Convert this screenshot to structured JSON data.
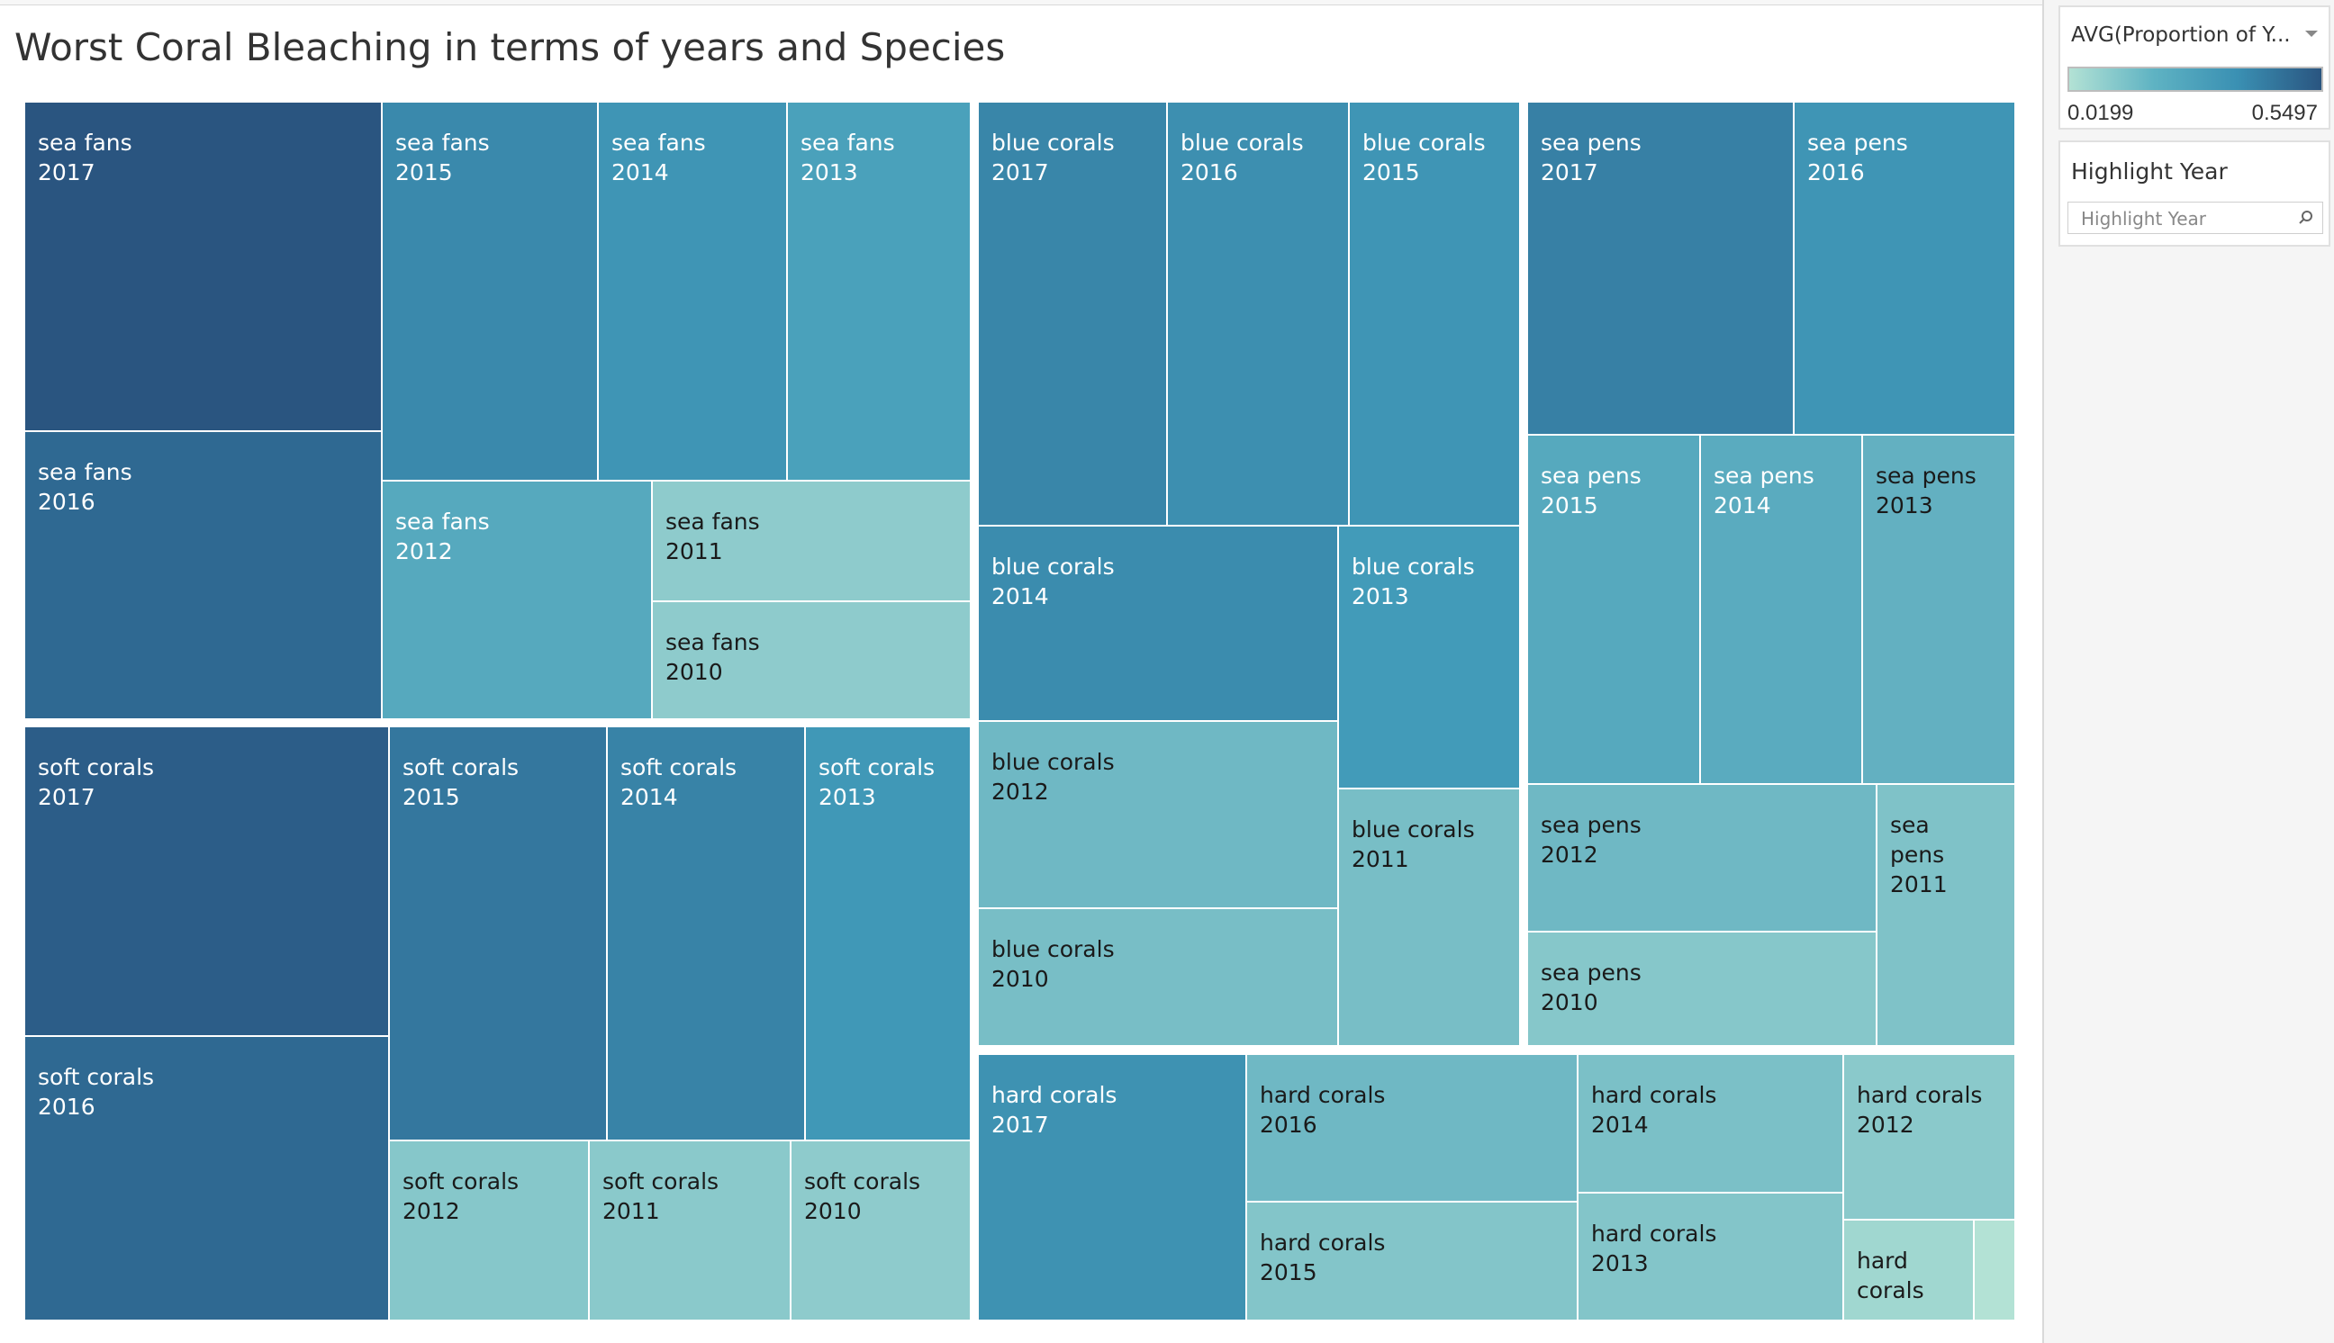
{
  "title": "Worst Coral Bleaching in terms of years and Species",
  "legend": {
    "title": "AVG(Proportion of Y...",
    "min_label": "0.0199",
    "max_label": "0.5497",
    "color_low": "#b3e2d5",
    "color_high": "#2a5580"
  },
  "highlight": {
    "title": "Highlight Year",
    "placeholder": "Highlight Year",
    "icon": "search-icon"
  },
  "chart_data": {
    "type": "treemap",
    "measure": "AVG(Proportion of Y...",
    "color_range": [
      0.0199,
      0.5497
    ],
    "label_fields": [
      "species",
      "year"
    ],
    "groups": [
      {
        "species": "sea fans",
        "tiles": [
          {
            "year": "2017",
            "value": 0.55
          },
          {
            "year": "2016",
            "value": 0.48
          },
          {
            "year": "2015",
            "value": 0.37
          },
          {
            "year": "2014",
            "value": 0.33
          },
          {
            "year": "2013",
            "value": 0.29
          },
          {
            "year": "2012",
            "value": 0.26
          },
          {
            "year": "2011",
            "value": 0.12
          },
          {
            "year": "2010",
            "value": 0.12
          }
        ]
      },
      {
        "species": "soft corals",
        "tiles": [
          {
            "year": "2017",
            "value": 0.52
          },
          {
            "year": "2016",
            "value": 0.48
          },
          {
            "year": "2015",
            "value": 0.43
          },
          {
            "year": "2014",
            "value": 0.39
          },
          {
            "year": "2013",
            "value": 0.32
          },
          {
            "year": "2012",
            "value": 0.14
          },
          {
            "year": "2011",
            "value": 0.13
          },
          {
            "year": "2010",
            "value": 0.12
          }
        ]
      },
      {
        "species": "blue corals",
        "tiles": [
          {
            "year": "2017",
            "value": 0.38
          },
          {
            "year": "2016",
            "value": 0.35
          },
          {
            "year": "2015",
            "value": 0.33
          },
          {
            "year": "2014",
            "value": 0.36
          },
          {
            "year": "2013",
            "value": 0.31
          },
          {
            "year": "2012",
            "value": 0.2
          },
          {
            "year": "2011",
            "value": 0.18
          },
          {
            "year": "2010",
            "value": 0.18
          }
        ]
      },
      {
        "species": "sea pens",
        "tiles": [
          {
            "year": "2017",
            "value": 0.4
          },
          {
            "year": "2016",
            "value": 0.33
          },
          {
            "year": "2015",
            "value": 0.26
          },
          {
            "year": "2014",
            "value": 0.25
          },
          {
            "year": "2013",
            "value": 0.23
          },
          {
            "year": "2012",
            "value": 0.2
          },
          {
            "year": "2011",
            "value": 0.16
          },
          {
            "year": "2010",
            "value": 0.14
          }
        ]
      },
      {
        "species": "hard corals",
        "tiles": [
          {
            "year": "2017",
            "value": 0.34
          },
          {
            "year": "2016",
            "value": 0.2
          },
          {
            "year": "2015",
            "value": 0.15
          },
          {
            "year": "2014",
            "value": 0.17
          },
          {
            "year": "2013",
            "value": 0.15
          },
          {
            "year": "2012",
            "value": 0.13
          },
          {
            "year": "",
            "value": 0.07
          },
          {
            "year": "",
            "value": 0.02
          }
        ]
      }
    ]
  }
}
